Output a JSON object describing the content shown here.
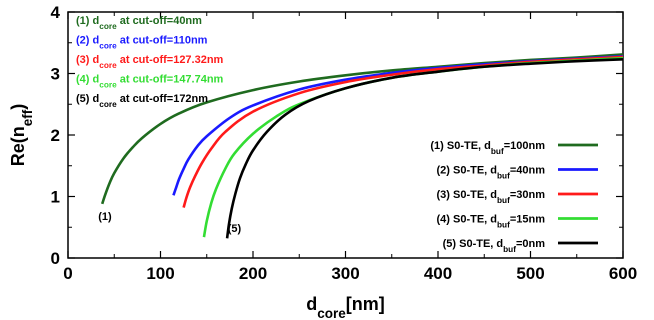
{
  "chart_data": {
    "type": "line",
    "xlabel": {
      "main": "d",
      "sub": "core",
      "rest": "[nm]"
    },
    "ylabel": {
      "main": "Re(n",
      "sub": "eff",
      "rest": ")"
    },
    "xlim": [
      0,
      600
    ],
    "ylim": [
      0,
      4
    ],
    "xticks": [
      "0",
      "100",
      "200",
      "300",
      "400",
      "500",
      "600"
    ],
    "yticks": [
      "0",
      "1",
      "2",
      "3",
      "4"
    ],
    "grid": false,
    "legend_position": "bottom-right",
    "annotations": [
      {
        "prefix": "(1) d",
        "sub": "core",
        "suffix": " at cut-off=40nm",
        "color": "#1f6b1f"
      },
      {
        "prefix": "(2) d",
        "sub": "core",
        "suffix": " at cut-off=110nm",
        "color": "#1a1aff"
      },
      {
        "prefix": "(3) d",
        "sub": "core",
        "suffix": " at cut-off=127.32nm",
        "color": "#ff1a1a"
      },
      {
        "prefix": "(4) d",
        "sub": "core",
        "suffix": " at cut-off=147.74nm",
        "color": "#33dd33"
      },
      {
        "prefix": "(5) d",
        "sub": "core",
        "suffix": " at cut-off=172nm",
        "color": "#000000"
      }
    ],
    "curve_labels": [
      {
        "text": "(1)",
        "x": 40,
        "y": 0.62
      },
      {
        "text": "(5)",
        "x": 180,
        "y": 0.42
      }
    ],
    "series": [
      {
        "name": "(1) S0-TE, d_buf=100nm",
        "legend": {
          "prefix": "(1) S0-TE, d",
          "sub": "buf",
          "suffix": "=100nm"
        },
        "color": "#1f6b1f",
        "x": [
          37,
          40,
          45,
          50,
          60,
          70,
          80,
          100,
          120,
          150,
          200,
          250,
          300,
          350,
          400,
          450,
          500,
          550,
          600
        ],
        "y": [
          0.88,
          1.02,
          1.22,
          1.38,
          1.62,
          1.8,
          1.95,
          2.18,
          2.35,
          2.53,
          2.73,
          2.87,
          2.97,
          3.05,
          3.11,
          3.17,
          3.22,
          3.26,
          3.31
        ]
      },
      {
        "name": "(2) S0-TE, d_buf=40nm",
        "legend": {
          "prefix": "(2) S0-TE, d",
          "sub": "buf",
          "suffix": "=40nm"
        },
        "color": "#1a1aff",
        "x": [
          114,
          117,
          120,
          125,
          130,
          140,
          150,
          175,
          200,
          250,
          300,
          350,
          400,
          450,
          500,
          550,
          600
        ],
        "y": [
          1.02,
          1.15,
          1.28,
          1.45,
          1.6,
          1.82,
          1.98,
          2.28,
          2.48,
          2.74,
          2.9,
          3.01,
          3.09,
          3.15,
          3.2,
          3.24,
          3.28
        ]
      },
      {
        "name": "(3) S0-TE, d_buf=30nm",
        "legend": {
          "prefix": "(3) S0-TE, d",
          "sub": "buf",
          "suffix": "=30nm"
        },
        "color": "#ff1a1a",
        "x": [
          125,
          128,
          132,
          138,
          145,
          155,
          170,
          200,
          250,
          300,
          350,
          400,
          450,
          500,
          550,
          600
        ],
        "y": [
          0.82,
          0.98,
          1.15,
          1.35,
          1.55,
          1.78,
          2.05,
          2.38,
          2.68,
          2.86,
          2.98,
          3.07,
          3.13,
          3.19,
          3.23,
          3.27
        ]
      },
      {
        "name": "(4) S0-TE, d_buf=15nm",
        "legend": {
          "prefix": "(4) S0-TE, d",
          "sub": "buf",
          "suffix": "=15nm"
        },
        "color": "#33dd33",
        "x": [
          147,
          150,
          155,
          160,
          170,
          180,
          200,
          225,
          250,
          300,
          350,
          400,
          450,
          500,
          550,
          600
        ],
        "y": [
          0.34,
          0.6,
          0.9,
          1.12,
          1.45,
          1.7,
          2.02,
          2.3,
          2.5,
          2.76,
          2.93,
          3.03,
          3.11,
          3.17,
          3.21,
          3.25
        ]
      },
      {
        "name": "(5) S0-TE, d_buf=0nm",
        "legend": {
          "prefix": "(5) S0-TE, d",
          "sub": "buf",
          "suffix": "=0nm"
        },
        "color": "#000000",
        "x": [
          172,
          174,
          177,
          181,
          186,
          192,
          200,
          215,
          235,
          260,
          300,
          350,
          400,
          450,
          500,
          550,
          600
        ],
        "y": [
          0.32,
          0.55,
          0.8,
          1.05,
          1.3,
          1.52,
          1.75,
          2.05,
          2.33,
          2.55,
          2.76,
          2.93,
          3.03,
          3.11,
          3.16,
          3.2,
          3.23
        ]
      }
    ]
  }
}
